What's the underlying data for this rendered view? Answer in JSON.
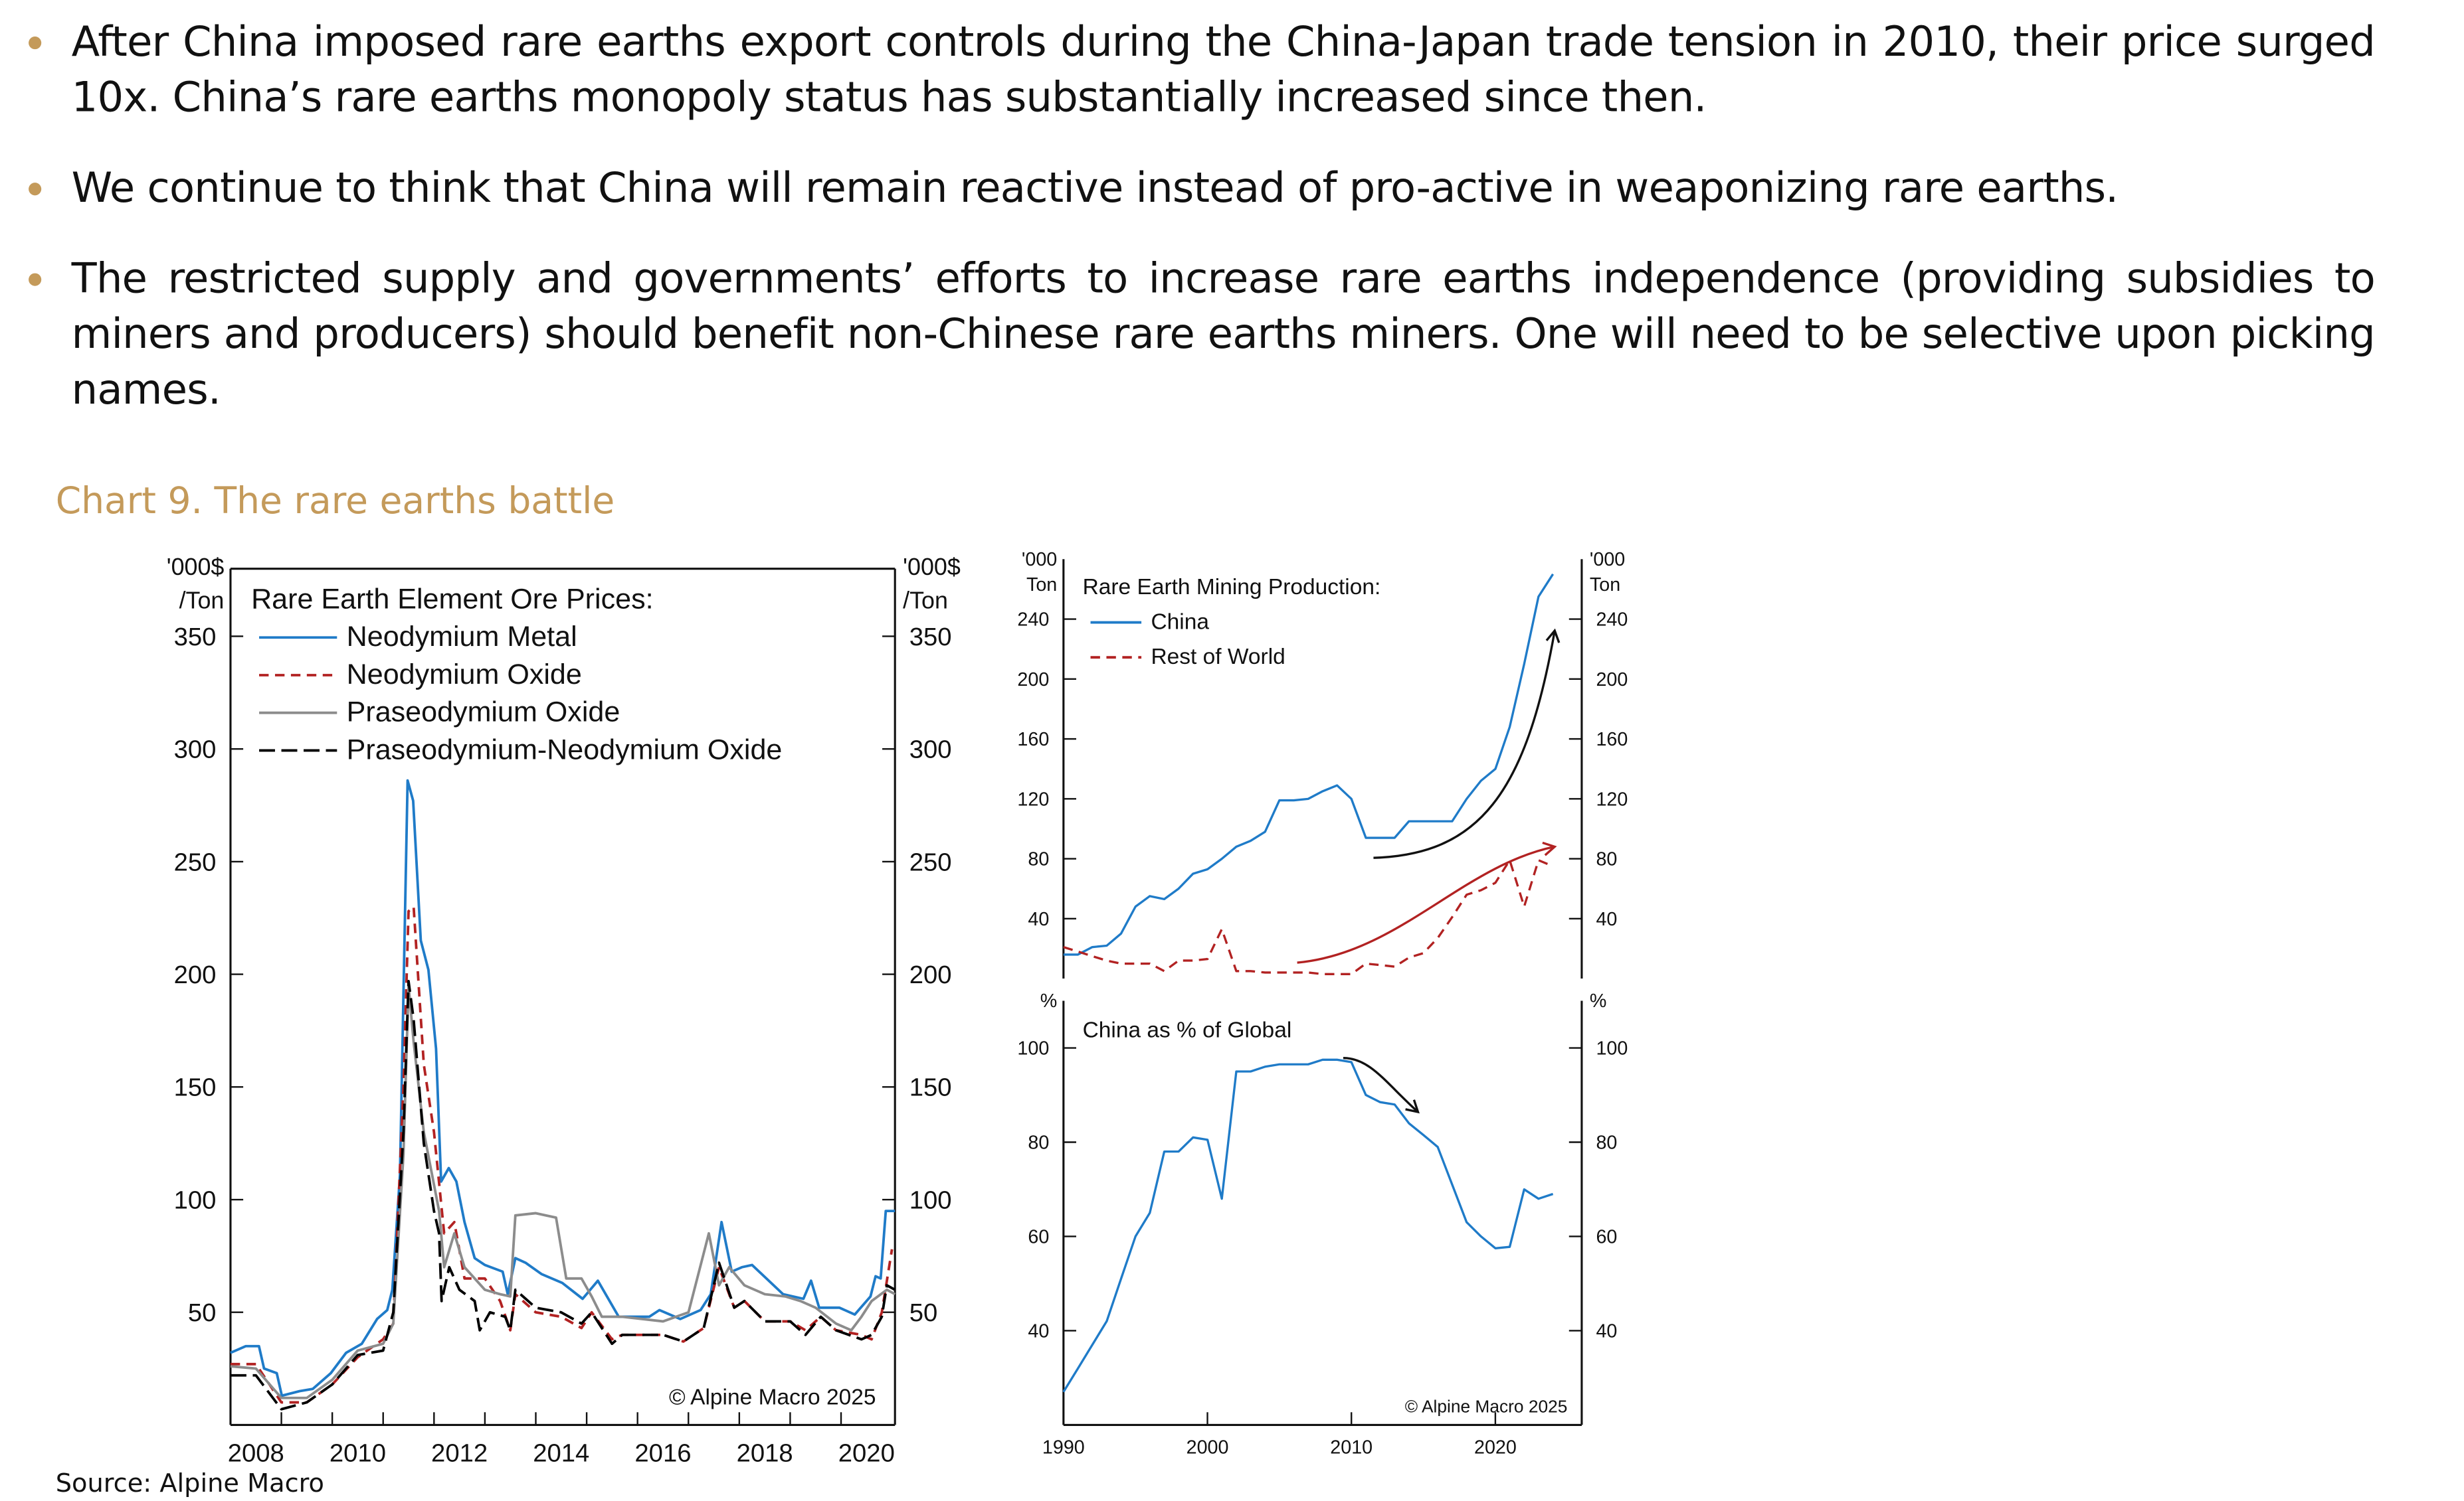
{
  "bullets": [
    "After China imposed rare earths export controls during the China-Japan trade tension in 2010, their price surged 10x. China’s rare earths monopoly status has substantially increased since then.",
    "We continue to think that China will remain reactive instead of pro-active in weaponizing rare earths.",
    "The restricted supply and governments’ efforts to increase rare earths independence (providing subsidies to miners and producers) should benefit non-Chinese rare earths miners. One will need to be selective upon picking names."
  ],
  "chart_title": "Chart 9. The rare earths battle",
  "source": "Source: Alpine Macro",
  "colors": {
    "accent": "#C49A5A",
    "blue": "#1F7BC8",
    "red": "#B22222",
    "gray": "#8C8C8C",
    "black": "#000000"
  },
  "chart_data": [
    {
      "type": "line",
      "title": "Rare Earth Element Ore Prices:",
      "ylabel_left": [
        "'000$",
        "/Ton"
      ],
      "ylabel_right": [
        "'000$",
        "/Ton"
      ],
      "xlim": [
        2007.5,
        2020.56
      ],
      "ylim": [
        0,
        380
      ],
      "yticks": [
        50,
        100,
        150,
        200,
        250,
        300,
        350
      ],
      "xticks": [
        2008,
        2010,
        2012,
        2014,
        2016,
        2018,
        2020
      ],
      "copyright": "© Alpine Macro 2025",
      "legend": "top-left",
      "series": [
        {
          "name": "Neodymium Metal",
          "color": "#1F7BC8",
          "dash": "none",
          "points": [
            [
              2007.5,
              32
            ],
            [
              2007.8,
              35
            ],
            [
              2008.06,
              35
            ],
            [
              2008.16,
              25
            ],
            [
              2008.41,
              23
            ],
            [
              2008.51,
              13
            ],
            [
              2008.86,
              15
            ],
            [
              2009.12,
              16
            ],
            [
              2009.47,
              23
            ],
            [
              2009.77,
              32
            ],
            [
              2010.08,
              36
            ],
            [
              2010.38,
              47
            ],
            [
              2010.58,
              51
            ],
            [
              2010.68,
              60
            ],
            [
              2010.83,
              111
            ],
            [
              2010.98,
              286
            ],
            [
              2011.09,
              277
            ],
            [
              2011.24,
              215
            ],
            [
              2011.39,
              202
            ],
            [
              2011.54,
              167
            ],
            [
              2011.64,
              108
            ],
            [
              2011.79,
              114
            ],
            [
              2011.94,
              108
            ],
            [
              2012.1,
              90
            ],
            [
              2012.3,
              74
            ],
            [
              2012.5,
              71
            ],
            [
              2012.85,
              68
            ],
            [
              2012.95,
              58
            ],
            [
              2013.1,
              74
            ],
            [
              2013.3,
              72
            ],
            [
              2013.61,
              67
            ],
            [
              2014.02,
              63
            ],
            [
              2014.42,
              56
            ],
            [
              2014.72,
              64
            ],
            [
              2015.13,
              48
            ],
            [
              2015.73,
              48
            ],
            [
              2015.93,
              51
            ],
            [
              2016.34,
              47
            ],
            [
              2016.74,
              51
            ],
            [
              2016.94,
              58
            ],
            [
              2017.15,
              90
            ],
            [
              2017.35,
              68
            ],
            [
              2017.55,
              70
            ],
            [
              2017.75,
              71
            ],
            [
              2018.36,
              58
            ],
            [
              2018.76,
              56
            ],
            [
              2018.91,
              64
            ],
            [
              2019.07,
              52
            ],
            [
              2019.47,
              52
            ],
            [
              2019.77,
              49
            ],
            [
              2020.08,
              57
            ],
            [
              2020.18,
              66
            ],
            [
              2020.28,
              65
            ],
            [
              2020.38,
              95
            ],
            [
              2020.56,
              95
            ]
          ]
        },
        {
          "name": "Neodymium Oxide",
          "color": "#B22222",
          "dash": "6,4",
          "points": [
            [
              2007.5,
              27
            ],
            [
              2008.0,
              27
            ],
            [
              2008.5,
              10
            ],
            [
              2009.0,
              10
            ],
            [
              2009.5,
              18
            ],
            [
              2010.0,
              30
            ],
            [
              2010.5,
              38
            ],
            [
              2010.7,
              45
            ],
            [
              2010.9,
              150
            ],
            [
              2011.0,
              228
            ],
            [
              2011.1,
              230
            ],
            [
              2011.3,
              160
            ],
            [
              2011.5,
              130
            ],
            [
              2011.7,
              85
            ],
            [
              2011.9,
              90
            ],
            [
              2012.1,
              65
            ],
            [
              2012.5,
              65
            ],
            [
              2012.8,
              55
            ],
            [
              2013.0,
              42
            ],
            [
              2013.1,
              58
            ],
            [
              2013.5,
              50
            ],
            [
              2014.0,
              48
            ],
            [
              2014.4,
              43
            ],
            [
              2014.6,
              50
            ],
            [
              2015.0,
              38
            ],
            [
              2015.2,
              40
            ],
            [
              2016.0,
              40
            ],
            [
              2016.4,
              37
            ],
            [
              2016.8,
              43
            ],
            [
              2017.1,
              70
            ],
            [
              2017.4,
              52
            ],
            [
              2017.6,
              55
            ],
            [
              2018.0,
              46
            ],
            [
              2018.5,
              46
            ],
            [
              2018.8,
              42
            ],
            [
              2019.1,
              48
            ],
            [
              2019.4,
              42
            ],
            [
              2019.9,
              40
            ],
            [
              2020.1,
              38
            ],
            [
              2020.3,
              50
            ],
            [
              2020.5,
              78
            ]
          ]
        },
        {
          "name": "Praseodymium Oxide",
          "color": "#8C8C8C",
          "dash": "none",
          "points": [
            [
              2007.5,
              26
            ],
            [
              2008.0,
              25
            ],
            [
              2008.5,
              12
            ],
            [
              2009.0,
              12
            ],
            [
              2009.5,
              20
            ],
            [
              2010.0,
              33
            ],
            [
              2010.5,
              36
            ],
            [
              2010.7,
              45
            ],
            [
              2010.9,
              120
            ],
            [
              2011.0,
              195
            ],
            [
              2011.1,
              170
            ],
            [
              2011.3,
              130
            ],
            [
              2011.6,
              95
            ],
            [
              2011.7,
              70
            ],
            [
              2011.9,
              85
            ],
            [
              2012.1,
              70
            ],
            [
              2012.5,
              60
            ],
            [
              2012.8,
              58
            ],
            [
              2013.0,
              57
            ],
            [
              2013.1,
              93
            ],
            [
              2013.5,
              94
            ],
            [
              2013.9,
              92
            ],
            [
              2014.1,
              65
            ],
            [
              2014.4,
              65
            ],
            [
              2014.6,
              57
            ],
            [
              2014.8,
              48
            ],
            [
              2015.2,
              48
            ],
            [
              2016.0,
              46
            ],
            [
              2016.5,
              50
            ],
            [
              2016.9,
              85
            ],
            [
              2017.1,
              62
            ],
            [
              2017.3,
              70
            ],
            [
              2017.6,
              62
            ],
            [
              2018.0,
              58
            ],
            [
              2018.4,
              57
            ],
            [
              2018.7,
              55
            ],
            [
              2019.0,
              52
            ],
            [
              2019.4,
              45
            ],
            [
              2019.7,
              42
            ],
            [
              2019.9,
              48
            ],
            [
              2020.1,
              55
            ],
            [
              2020.4,
              60
            ],
            [
              2020.56,
              58
            ]
          ]
        },
        {
          "name": "Praseodymium-Neodymium Oxide",
          "color": "#000000",
          "dash": "10,4",
          "points": [
            [
              2007.5,
              22
            ],
            [
              2008.0,
              22
            ],
            [
              2008.5,
              7
            ],
            [
              2009.0,
              10
            ],
            [
              2009.5,
              18
            ],
            [
              2010.0,
              31
            ],
            [
              2010.5,
              33
            ],
            [
              2010.7,
              50
            ],
            [
              2010.9,
              130
            ],
            [
              2011.0,
              197
            ],
            [
              2011.1,
              180
            ],
            [
              2011.3,
              125
            ],
            [
              2011.5,
              95
            ],
            [
              2011.6,
              85
            ],
            [
              2011.65,
              55
            ],
            [
              2011.8,
              70
            ],
            [
              2012.0,
              60
            ],
            [
              2012.3,
              55
            ],
            [
              2012.4,
              42
            ],
            [
              2012.6,
              50
            ],
            [
              2012.9,
              48
            ],
            [
              2013.0,
              42
            ],
            [
              2013.1,
              60
            ],
            [
              2013.5,
              52
            ],
            [
              2014.0,
              50
            ],
            [
              2014.4,
              45
            ],
            [
              2014.6,
              50
            ],
            [
              2015.0,
              36
            ],
            [
              2015.2,
              40
            ],
            [
              2016.0,
              40
            ],
            [
              2016.4,
              37
            ],
            [
              2016.8,
              43
            ],
            [
              2017.1,
              72
            ],
            [
              2017.4,
              52
            ],
            [
              2017.6,
              55
            ],
            [
              2018.0,
              46
            ],
            [
              2018.5,
              46
            ],
            [
              2018.8,
              40
            ],
            [
              2019.1,
              48
            ],
            [
              2019.4,
              42
            ],
            [
              2019.9,
              38
            ],
            [
              2020.1,
              40
            ],
            [
              2020.3,
              48
            ],
            [
              2020.4,
              62
            ],
            [
              2020.56,
              60
            ]
          ]
        }
      ]
    },
    {
      "type": "line",
      "title": "Rare Earth Mining Production:",
      "ylabel_left": [
        "'000",
        "Ton"
      ],
      "ylabel_right": [
        "'000",
        "Ton"
      ],
      "xlim": [
        1990,
        2026
      ],
      "ylim": [
        0,
        280
      ],
      "yticks": [
        40,
        80,
        120,
        160,
        200,
        240
      ],
      "legend": "top-left",
      "series": [
        {
          "name": "China",
          "color": "#1F7BC8",
          "dash": "none",
          "x": [
            1990,
            1991,
            1992,
            1993,
            1994,
            1995,
            1996,
            1997,
            1998,
            1999,
            2000,
            2001,
            2002,
            2003,
            2004,
            2005,
            2006,
            2007,
            2008,
            2009,
            2010,
            2011,
            2012,
            2013,
            2014,
            2015,
            2016,
            2017,
            2018,
            2019,
            2020,
            2021,
            2022,
            2023,
            2024
          ],
          "values": [
            16,
            16,
            21,
            22,
            30,
            48,
            55,
            53,
            60,
            70,
            73,
            80,
            88,
            92,
            98,
            119,
            119,
            120,
            125,
            129,
            120,
            94,
            94,
            94,
            105,
            105,
            105,
            105,
            120,
            132,
            140,
            168,
            210,
            255,
            270
          ]
        },
        {
          "name": "Rest of World",
          "color": "#B22222",
          "dash": "6,4",
          "x": [
            1990,
            1991,
            1992,
            1993,
            1994,
            1995,
            1996,
            1997,
            1998,
            1999,
            2000,
            2001,
            2002,
            2003,
            2004,
            2005,
            2006,
            2007,
            2008,
            2009,
            2010,
            2011,
            2012,
            2013,
            2014,
            2015,
            2016,
            2017,
            2018,
            2019,
            2020,
            2021,
            2022,
            2023,
            2024
          ],
          "values": [
            21,
            18,
            15,
            12,
            10,
            10,
            10,
            5,
            12,
            12,
            13,
            33,
            5,
            5,
            4,
            4,
            4,
            4,
            3,
            3,
            3,
            10,
            9,
            8,
            14,
            17,
            27,
            41,
            56,
            59,
            64,
            79,
            48,
            79,
            75
          ]
        }
      ]
    },
    {
      "type": "line",
      "title": "China as % of Global",
      "ylabel_left": [
        "%"
      ],
      "ylabel_right": [
        "%"
      ],
      "xlim": [
        1990,
        2026
      ],
      "ylim": [
        20,
        110
      ],
      "yticks": [
        40,
        60,
        80,
        100
      ],
      "xticks": [
        1990,
        2000,
        2010,
        2020
      ],
      "copyright": "© Alpine Macro 2025",
      "series": [
        {
          "color": "#1F7BC8",
          "dash": "none",
          "x": [
            1990,
            1991,
            1992,
            1993,
            1994,
            1995,
            1996,
            1997,
            1998,
            1999,
            2000,
            2001,
            2002,
            2003,
            2004,
            2005,
            2006,
            2007,
            2008,
            2009,
            2010,
            2011,
            2012,
            2013,
            2014,
            2015,
            2016,
            2017,
            2018,
            2019,
            2020,
            2021,
            2022,
            2023,
            2024
          ],
          "values": [
            27,
            32,
            37,
            42,
            51,
            60,
            65,
            78,
            78,
            81,
            80.5,
            68,
            95,
            95,
            96,
            96.5,
            96.5,
            96.5,
            97.5,
            97.5,
            97,
            90,
            88.5,
            88,
            84,
            81.5,
            79,
            71,
            63,
            60,
            57.5,
            57.8,
            70,
            68,
            69
          ]
        }
      ]
    }
  ]
}
